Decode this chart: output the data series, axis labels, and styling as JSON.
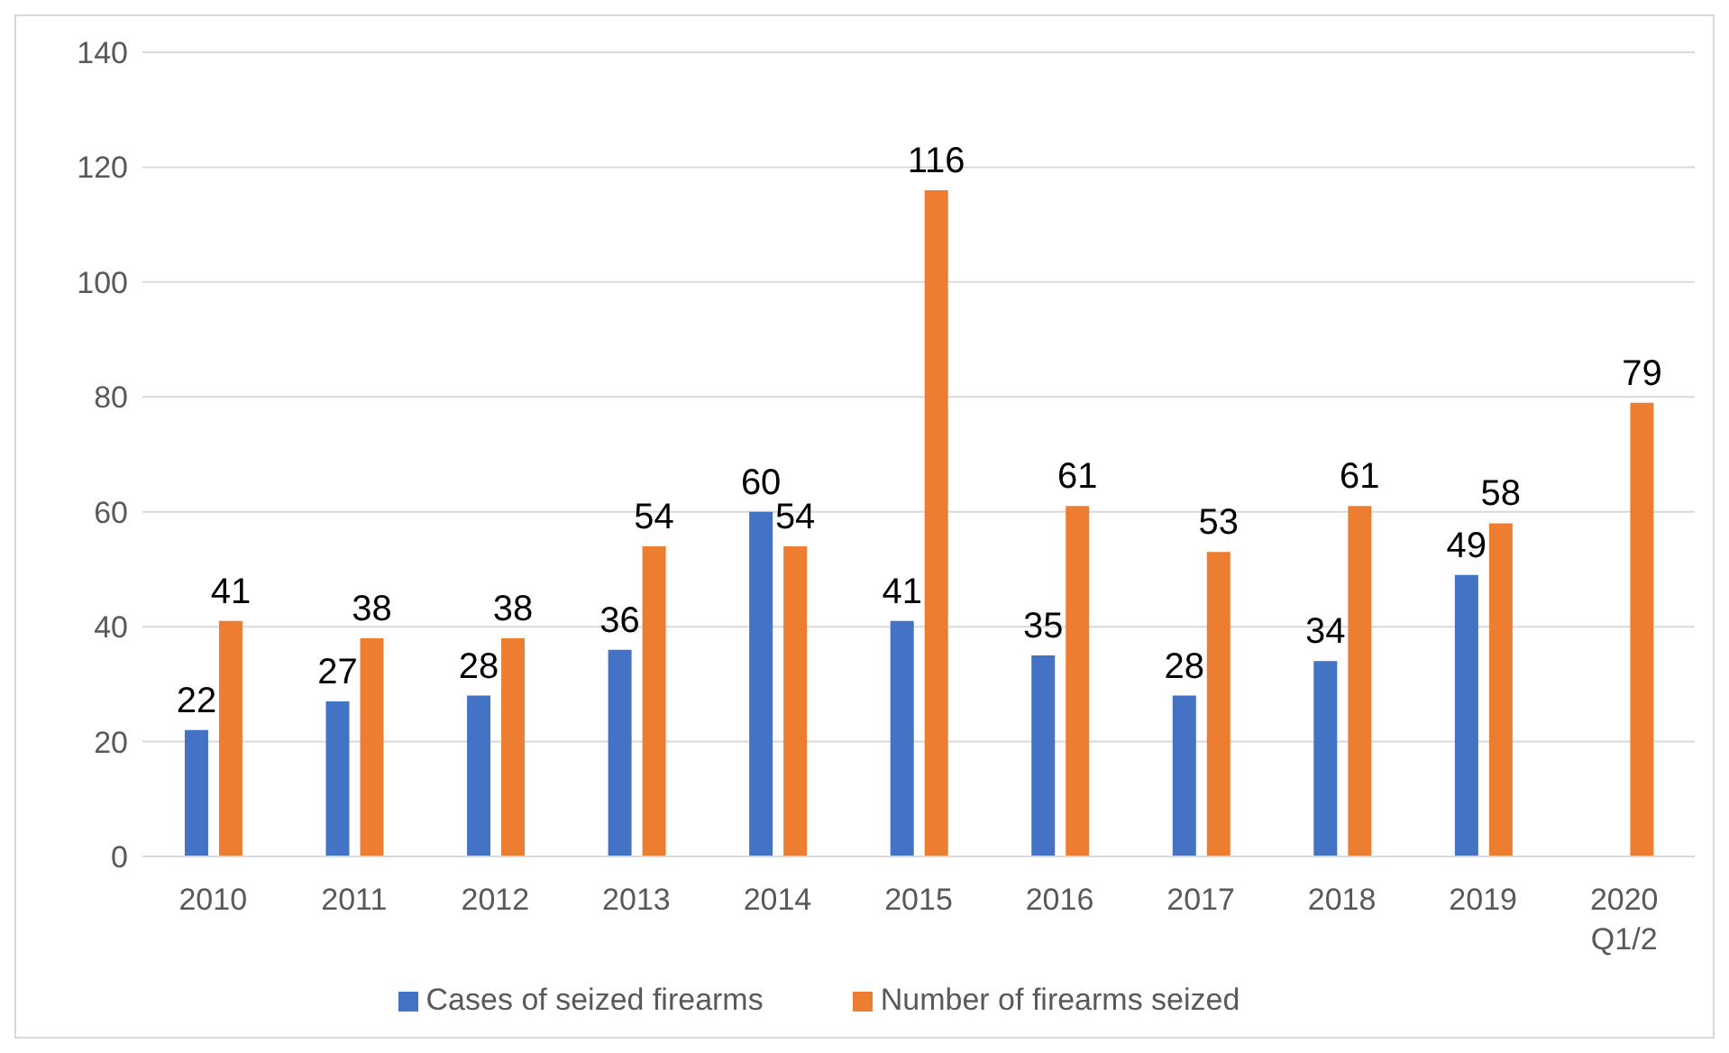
{
  "chart_data": {
    "type": "bar",
    "categories": [
      "2010",
      "2011",
      "2012",
      "2013",
      "2014",
      "2015",
      "2016",
      "2017",
      "2018",
      "2019",
      "2020 Q1/2"
    ],
    "series": [
      {
        "name": "Cases of seized firearms",
        "color": "#4472c4",
        "values": [
          22,
          27,
          28,
          36,
          60,
          41,
          35,
          28,
          34,
          49,
          null
        ]
      },
      {
        "name": "Number of firearms seized",
        "color": "#ed7d31",
        "values": [
          41,
          38,
          38,
          54,
          54,
          116,
          61,
          53,
          61,
          58,
          79
        ]
      }
    ],
    "ylim": [
      0,
      140
    ],
    "yticks": [
      0,
      20,
      40,
      60,
      80,
      100,
      120,
      140
    ],
    "grid": "y",
    "legend": "bottom",
    "data_labels": true
  }
}
